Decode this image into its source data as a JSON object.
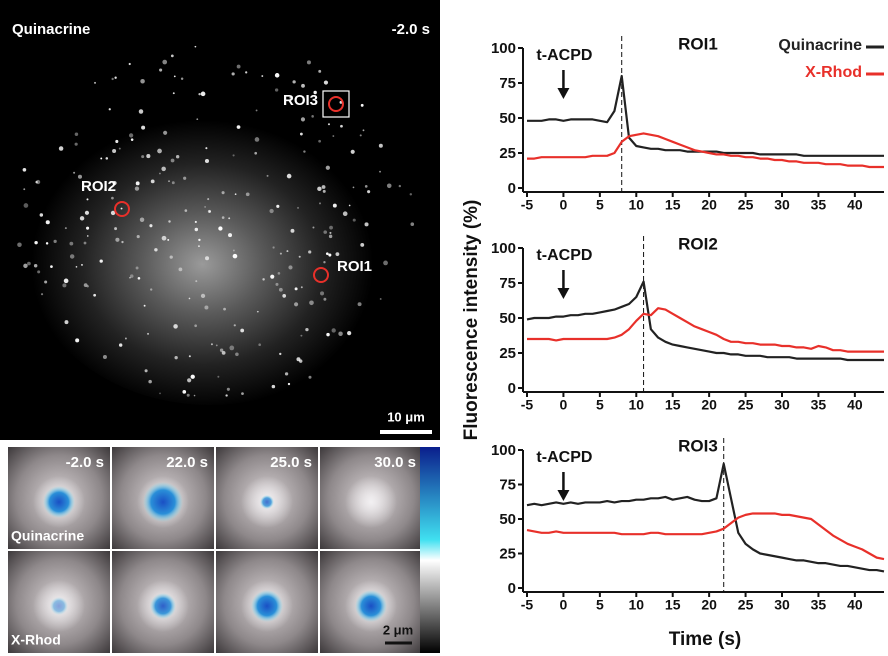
{
  "image": {
    "title": "Quinacrine",
    "time": "-2.0 s",
    "rois": [
      "ROI1",
      "ROI2",
      "ROI3"
    ],
    "scale_bar": "10 μm"
  },
  "montage": {
    "times": [
      "-2.0 s",
      "22.0 s",
      "25.0 s",
      "30.0 s"
    ],
    "rows": [
      "Quinacrine",
      "X-Rhod"
    ],
    "scale_bar": "2 μm"
  },
  "axis_labels": {
    "y": "Fluorescence intensity (%)",
    "x": "Time (s)"
  },
  "chart_data": [
    {
      "type": "line",
      "title": "ROI1",
      "annotation": "t-ACPD",
      "annotation_x": 0,
      "event_x": 8,
      "legend": "upper right",
      "xlim": [
        -5,
        44
      ],
      "ylim": [
        0,
        100
      ],
      "xticks": [
        -5,
        0,
        5,
        10,
        15,
        20,
        25,
        30,
        35,
        40
      ],
      "yticks": [
        0,
        25,
        50,
        75,
        100
      ],
      "x": [
        -5,
        -4,
        -3,
        -2,
        -1,
        0,
        1,
        2,
        3,
        4,
        5,
        6,
        7,
        8,
        9,
        10,
        11,
        12,
        13,
        14,
        15,
        16,
        17,
        18,
        19,
        20,
        21,
        22,
        23,
        24,
        25,
        26,
        27,
        28,
        29,
        30,
        31,
        32,
        33,
        34,
        35,
        36,
        37,
        38,
        39,
        40,
        41,
        42,
        43,
        44
      ],
      "series": [
        {
          "name": "Quinacrine",
          "color": "#222222",
          "values": [
            48,
            48,
            48,
            49,
            49,
            48,
            49,
            49,
            49,
            49,
            48,
            47,
            55,
            80,
            36,
            30,
            29,
            28,
            28,
            27,
            27,
            27,
            26,
            26,
            26,
            26,
            26,
            25,
            25,
            25,
            25,
            25,
            24,
            24,
            24,
            24,
            24,
            24,
            23,
            23,
            23,
            23,
            23,
            23,
            23,
            23,
            23,
            23,
            23,
            23
          ]
        },
        {
          "name": "X-Rhod",
          "color": "#e8302a",
          "values": [
            21,
            21,
            22,
            22,
            22,
            22,
            22,
            22,
            22,
            23,
            23,
            23,
            25,
            33,
            37,
            38,
            39,
            38,
            37,
            35,
            33,
            31,
            29,
            27,
            26,
            25,
            24,
            24,
            23,
            23,
            22,
            22,
            21,
            21,
            20,
            20,
            19,
            19,
            18,
            18,
            18,
            17,
            17,
            17,
            16,
            16,
            16,
            15,
            15,
            15
          ]
        }
      ]
    },
    {
      "type": "line",
      "title": "ROI2",
      "annotation": "t-ACPD",
      "annotation_x": 0,
      "event_x": 11,
      "xlim": [
        -5,
        44
      ],
      "ylim": [
        0,
        100
      ],
      "xticks": [
        -5,
        0,
        5,
        10,
        15,
        20,
        25,
        30,
        35,
        40
      ],
      "yticks": [
        0,
        25,
        50,
        75,
        100
      ],
      "x": [
        -5,
        -4,
        -3,
        -2,
        -1,
        0,
        1,
        2,
        3,
        4,
        5,
        6,
        7,
        8,
        9,
        10,
        11,
        12,
        13,
        14,
        15,
        16,
        17,
        18,
        19,
        20,
        21,
        22,
        23,
        24,
        25,
        26,
        27,
        28,
        29,
        30,
        31,
        32,
        33,
        34,
        35,
        36,
        37,
        38,
        39,
        40,
        41,
        42,
        43,
        44
      ],
      "series": [
        {
          "name": "Quinacrine",
          "color": "#222222",
          "values": [
            49,
            50,
            50,
            50,
            51,
            51,
            52,
            52,
            53,
            53,
            54,
            55,
            56,
            58,
            60,
            65,
            76,
            42,
            36,
            33,
            31,
            30,
            29,
            28,
            27,
            26,
            25,
            25,
            24,
            24,
            23,
            23,
            23,
            22,
            22,
            22,
            22,
            21,
            21,
            21,
            21,
            21,
            21,
            21,
            20,
            20,
            20,
            20,
            20,
            20
          ]
        },
        {
          "name": "X-Rhod",
          "color": "#e8302a",
          "values": [
            35,
            35,
            35,
            35,
            34,
            35,
            35,
            35,
            35,
            35,
            35,
            35,
            36,
            38,
            42,
            48,
            53,
            52,
            57,
            56,
            53,
            50,
            47,
            44,
            42,
            40,
            38,
            35,
            33,
            33,
            32,
            32,
            31,
            31,
            31,
            30,
            30,
            29,
            29,
            28,
            30,
            29,
            27,
            27,
            26,
            26,
            26,
            26,
            26,
            26
          ]
        }
      ]
    },
    {
      "type": "line",
      "title": "ROI3",
      "annotation": "t-ACPD",
      "annotation_x": 0,
      "event_x": 22,
      "xlim": [
        -5,
        44
      ],
      "ylim": [
        0,
        100
      ],
      "xticks": [
        -5,
        0,
        5,
        10,
        15,
        20,
        25,
        30,
        35,
        40
      ],
      "yticks": [
        0,
        25,
        50,
        75,
        100
      ],
      "x": [
        -5,
        -4,
        -3,
        -2,
        -1,
        0,
        1,
        2,
        3,
        4,
        5,
        6,
        7,
        8,
        9,
        10,
        11,
        12,
        13,
        14,
        15,
        16,
        17,
        18,
        19,
        20,
        21,
        22,
        23,
        24,
        25,
        26,
        27,
        28,
        29,
        30,
        31,
        32,
        33,
        34,
        35,
        36,
        37,
        38,
        39,
        40,
        41,
        42,
        43,
        44
      ],
      "series": [
        {
          "name": "Quinacrine",
          "color": "#222222",
          "values": [
            60,
            61,
            60,
            61,
            62,
            61,
            62,
            61,
            62,
            62,
            62,
            63,
            62,
            63,
            63,
            64,
            64,
            65,
            65,
            66,
            64,
            65,
            66,
            64,
            63,
            63,
            65,
            90,
            65,
            40,
            32,
            28,
            25,
            24,
            23,
            22,
            21,
            20,
            20,
            19,
            18,
            18,
            17,
            16,
            16,
            15,
            14,
            13,
            13,
            12
          ]
        },
        {
          "name": "X-Rhod",
          "color": "#e8302a",
          "values": [
            42,
            41,
            40,
            40,
            41,
            40,
            40,
            40,
            40,
            40,
            40,
            40,
            40,
            39,
            39,
            39,
            39,
            40,
            40,
            39,
            39,
            39,
            39,
            39,
            39,
            40,
            41,
            43,
            47,
            51,
            53,
            54,
            54,
            54,
            54,
            53,
            53,
            52,
            51,
            50,
            46,
            42,
            38,
            35,
            32,
            30,
            28,
            25,
            22,
            21
          ]
        }
      ]
    }
  ]
}
